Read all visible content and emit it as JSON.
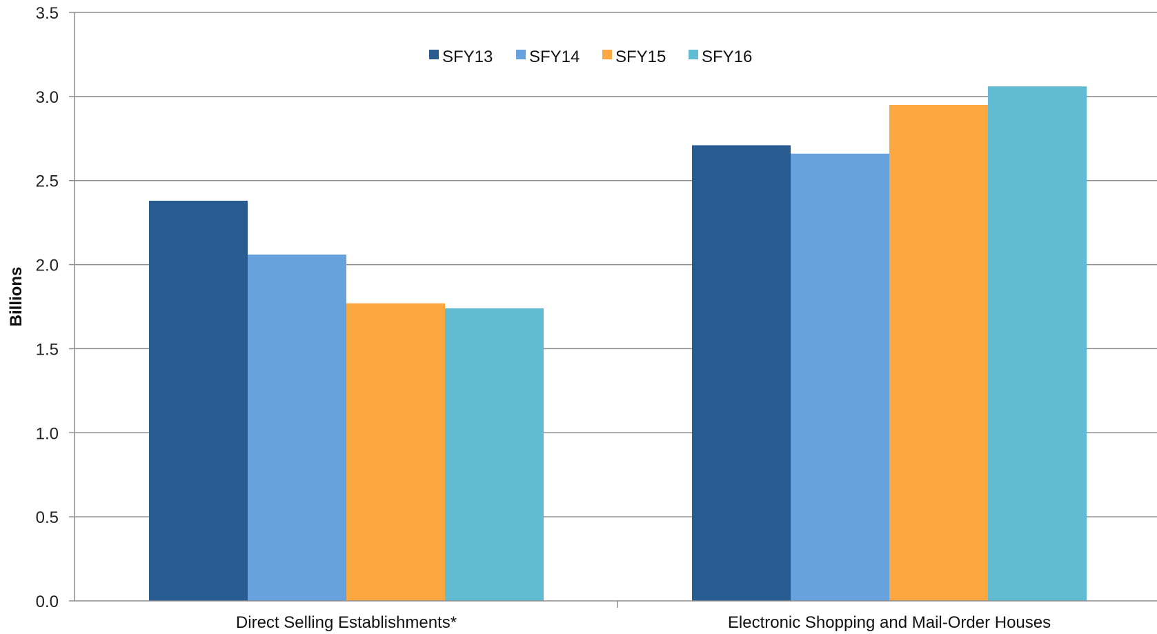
{
  "chart_data": {
    "type": "bar",
    "title": "",
    "xlabel": "",
    "ylabel": "Billions",
    "ylim": [
      0,
      3.5
    ],
    "yticks": [
      0,
      0.5,
      1,
      1.5,
      2,
      2.5,
      3,
      3.5
    ],
    "ytick_labels": [
      "0.0",
      "0.5",
      "1.0",
      "1.5",
      "2.0",
      "2.5",
      "3.0",
      "3.5"
    ],
    "grid": true,
    "legend_position": "top-center",
    "categories": [
      "Direct Selling Establishments*",
      "Electronic Shopping and Mail-Order Houses"
    ],
    "series": [
      {
        "name": "SFY13",
        "color": "#285b8f",
        "values": [
          2.38,
          2.71
        ]
      },
      {
        "name": "SFY14",
        "color": "#67a2de",
        "values": [
          2.06,
          2.66
        ]
      },
      {
        "name": "SFY15",
        "color": "#fba842",
        "values": [
          1.77,
          2.95
        ]
      },
      {
        "name": "SFY16",
        "color": "#60bbd3",
        "values": [
          1.74,
          3.06
        ]
      }
    ]
  }
}
